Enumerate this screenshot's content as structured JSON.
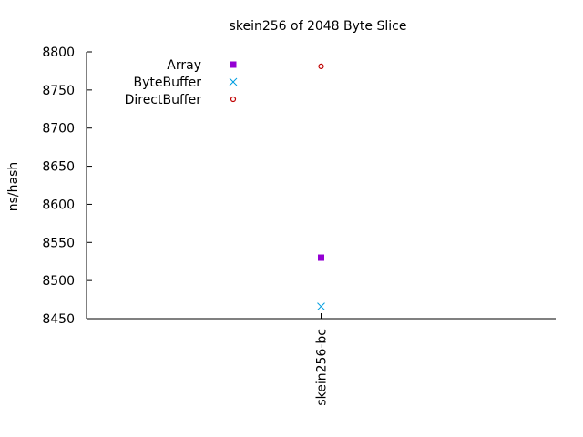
{
  "chart_data": {
    "type": "scatter",
    "title": "skein256 of 2048 Byte Slice",
    "xlabel": "",
    "ylabel": "ns/hash",
    "categories": [
      "skein256-bc"
    ],
    "ylim": [
      8450,
      8800
    ],
    "yticks": [
      8450,
      8500,
      8550,
      8600,
      8650,
      8700,
      8750,
      8800
    ],
    "grid": false,
    "legend_position": "top-left",
    "series": [
      {
        "name": "Array",
        "marker": "filled-square",
        "color": "#9400d3",
        "values": [
          8530
        ]
      },
      {
        "name": "ByteBuffer",
        "marker": "x-cross",
        "color": "#009ee0",
        "values": [
          8466
        ]
      },
      {
        "name": "DirectBuffer",
        "marker": "open-circle",
        "color": "#c00000",
        "values": [
          8781
        ]
      }
    ]
  }
}
